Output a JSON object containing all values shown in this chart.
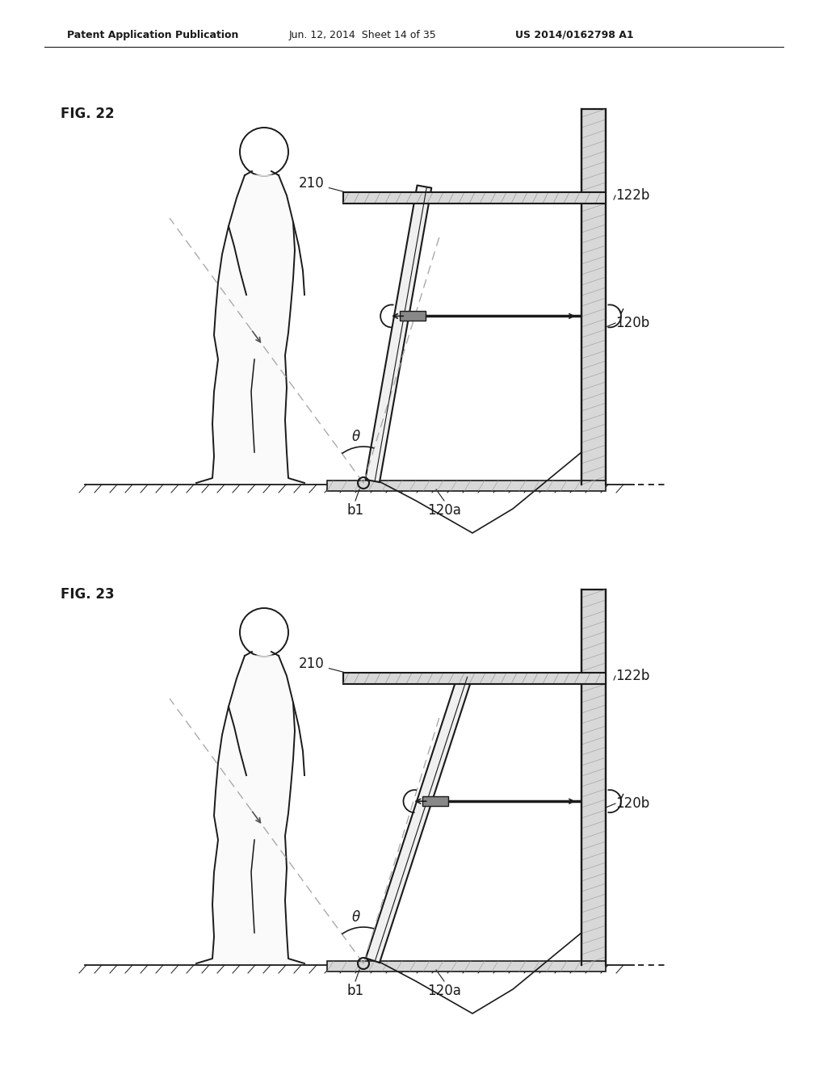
{
  "bg_color": "#ffffff",
  "header_text": "Patent Application Publication",
  "header_date": "Jun. 12, 2014  Sheet 14 of 35",
  "header_patent": "US 2014/0162798 A1",
  "fig22_label": "FIG. 22",
  "fig23_label": "FIG. 23",
  "label_210": "210",
  "label_122b": "122b",
  "label_120b": "120b",
  "label_120a": "120a",
  "label_b1": "b1",
  "label_theta": "θ",
  "line_color": "#1a1a1a",
  "gray_light": "#d8d8d8",
  "gray_mid": "#aaaaaa",
  "gray_dark": "#888888",
  "hatch_gray": "#999999",
  "person_color": "#cccccc"
}
